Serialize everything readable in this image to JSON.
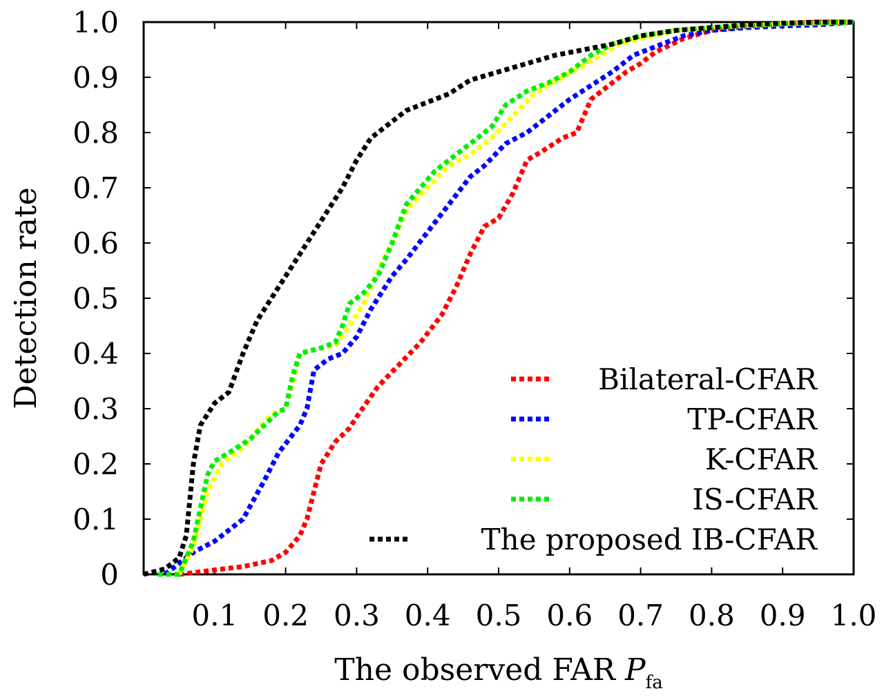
{
  "chart_data": {
    "type": "line",
    "title": "",
    "xlabel": "The observed FAR ",
    "xlabel_symbol": "P",
    "xlabel_subscript": "fa",
    "ylabel": "Detection rate",
    "xlim": [
      0,
      1.0
    ],
    "ylim": [
      0,
      1.0
    ],
    "xticks": [
      "0.1",
      "0.2",
      "0.3",
      "0.4",
      "0.5",
      "0.6",
      "0.7",
      "0.8",
      "0.9",
      "1.0"
    ],
    "xtick_values": [
      0.1,
      0.2,
      0.3,
      0.4,
      0.5,
      0.6,
      0.7,
      0.8,
      0.9,
      1.0
    ],
    "yticks": [
      "0",
      "0.1",
      "0.2",
      "0.3",
      "0.4",
      "0.5",
      "0.6",
      "0.7",
      "0.8",
      "0.9",
      "1.0"
    ],
    "ytick_values": [
      0,
      0.1,
      0.2,
      0.3,
      0.4,
      0.5,
      0.6,
      0.7,
      0.8,
      0.9,
      1.0
    ],
    "grid": false,
    "legend_position": "bottom-right",
    "line_style": "dotted",
    "series": [
      {
        "name": "Bilateral-CFAR",
        "color": "#ff0000",
        "points": [
          [
            0.05,
            0
          ],
          [
            0.07,
            0.003
          ],
          [
            0.1,
            0.008
          ],
          [
            0.14,
            0.014
          ],
          [
            0.18,
            0.025
          ],
          [
            0.2,
            0.04
          ],
          [
            0.22,
            0.07
          ],
          [
            0.23,
            0.1
          ],
          [
            0.24,
            0.15
          ],
          [
            0.25,
            0.2
          ],
          [
            0.27,
            0.24
          ],
          [
            0.29,
            0.265
          ],
          [
            0.3,
            0.285
          ],
          [
            0.33,
            0.34
          ],
          [
            0.36,
            0.38
          ],
          [
            0.39,
            0.42
          ],
          [
            0.42,
            0.47
          ],
          [
            0.44,
            0.52
          ],
          [
            0.46,
            0.58
          ],
          [
            0.48,
            0.63
          ],
          [
            0.5,
            0.645
          ],
          [
            0.52,
            0.69
          ],
          [
            0.54,
            0.75
          ],
          [
            0.56,
            0.765
          ],
          [
            0.59,
            0.79
          ],
          [
            0.61,
            0.8
          ],
          [
            0.63,
            0.86
          ],
          [
            0.66,
            0.89
          ],
          [
            0.68,
            0.91
          ],
          [
            0.7,
            0.925
          ],
          [
            0.72,
            0.945
          ],
          [
            0.76,
            0.97
          ],
          [
            0.8,
            0.985
          ],
          [
            0.85,
            0.992
          ],
          [
            0.9,
            0.997
          ],
          [
            0.95,
            1.0
          ],
          [
            1.0,
            1.0
          ]
        ]
      },
      {
        "name": "TP-CFAR",
        "color": "#0000ff",
        "points": [
          [
            0.03,
            0.0
          ],
          [
            0.05,
            0.02
          ],
          [
            0.07,
            0.04
          ],
          [
            0.1,
            0.06
          ],
          [
            0.14,
            0.1
          ],
          [
            0.17,
            0.17
          ],
          [
            0.19,
            0.22
          ],
          [
            0.22,
            0.27
          ],
          [
            0.23,
            0.3
          ],
          [
            0.24,
            0.37
          ],
          [
            0.26,
            0.39
          ],
          [
            0.28,
            0.4
          ],
          [
            0.3,
            0.43
          ],
          [
            0.32,
            0.48
          ],
          [
            0.35,
            0.54
          ],
          [
            0.37,
            0.57
          ],
          [
            0.4,
            0.62
          ],
          [
            0.43,
            0.67
          ],
          [
            0.46,
            0.72
          ],
          [
            0.48,
            0.74
          ],
          [
            0.51,
            0.78
          ],
          [
            0.54,
            0.8
          ],
          [
            0.57,
            0.83
          ],
          [
            0.6,
            0.86
          ],
          [
            0.63,
            0.885
          ],
          [
            0.66,
            0.91
          ],
          [
            0.69,
            0.94
          ],
          [
            0.73,
            0.96
          ],
          [
            0.76,
            0.975
          ],
          [
            0.8,
            0.985
          ],
          [
            0.85,
            0.99
          ],
          [
            0.9,
            0.993
          ],
          [
            0.95,
            0.995
          ],
          [
            1.0,
            1.0
          ]
        ]
      },
      {
        "name": "K-CFAR",
        "color": "#ffff00",
        "points": [
          [
            0.05,
            0.0
          ],
          [
            0.07,
            0.05
          ],
          [
            0.09,
            0.15
          ],
          [
            0.11,
            0.2
          ],
          [
            0.14,
            0.23
          ],
          [
            0.16,
            0.26
          ],
          [
            0.18,
            0.29
          ],
          [
            0.2,
            0.3
          ],
          [
            0.21,
            0.35
          ],
          [
            0.22,
            0.4
          ],
          [
            0.25,
            0.41
          ],
          [
            0.27,
            0.415
          ],
          [
            0.29,
            0.45
          ],
          [
            0.31,
            0.49
          ],
          [
            0.33,
            0.55
          ],
          [
            0.35,
            0.6
          ],
          [
            0.37,
            0.66
          ],
          [
            0.4,
            0.7
          ],
          [
            0.43,
            0.74
          ],
          [
            0.46,
            0.76
          ],
          [
            0.49,
            0.79
          ],
          [
            0.52,
            0.83
          ],
          [
            0.55,
            0.87
          ],
          [
            0.59,
            0.9
          ],
          [
            0.63,
            0.93
          ],
          [
            0.67,
            0.96
          ],
          [
            0.7,
            0.97
          ],
          [
            0.75,
            0.985
          ],
          [
            0.8,
            0.99
          ],
          [
            0.9,
            0.997
          ],
          [
            1.0,
            1.0
          ]
        ]
      },
      {
        "name": "IS-CFAR",
        "color": "#00ee00",
        "points": [
          [
            0.02,
            0.0
          ],
          [
            0.05,
            0.0
          ],
          [
            0.07,
            0.06
          ],
          [
            0.08,
            0.12
          ],
          [
            0.09,
            0.18
          ],
          [
            0.1,
            0.205
          ],
          [
            0.12,
            0.22
          ],
          [
            0.15,
            0.245
          ],
          [
            0.17,
            0.27
          ],
          [
            0.19,
            0.295
          ],
          [
            0.2,
            0.3
          ],
          [
            0.21,
            0.36
          ],
          [
            0.22,
            0.4
          ],
          [
            0.25,
            0.41
          ],
          [
            0.27,
            0.42
          ],
          [
            0.28,
            0.45
          ],
          [
            0.29,
            0.49
          ],
          [
            0.31,
            0.51
          ],
          [
            0.33,
            0.54
          ],
          [
            0.35,
            0.6
          ],
          [
            0.37,
            0.67
          ],
          [
            0.39,
            0.7
          ],
          [
            0.41,
            0.73
          ],
          [
            0.44,
            0.76
          ],
          [
            0.47,
            0.79
          ],
          [
            0.49,
            0.81
          ],
          [
            0.51,
            0.85
          ],
          [
            0.54,
            0.875
          ],
          [
            0.57,
            0.89
          ],
          [
            0.6,
            0.91
          ],
          [
            0.63,
            0.94
          ],
          [
            0.66,
            0.96
          ],
          [
            0.7,
            0.975
          ],
          [
            0.75,
            0.985
          ],
          [
            0.8,
            0.99
          ],
          [
            0.9,
            0.997
          ],
          [
            1.0,
            1.0
          ]
        ]
      },
      {
        "name": "The proposed IB-CFAR",
        "color": "#000000",
        "points": [
          [
            0.0,
            0.0
          ],
          [
            0.03,
            0.01
          ],
          [
            0.05,
            0.03
          ],
          [
            0.06,
            0.07
          ],
          [
            0.07,
            0.2
          ],
          [
            0.08,
            0.27
          ],
          [
            0.09,
            0.29
          ],
          [
            0.1,
            0.31
          ],
          [
            0.12,
            0.33
          ],
          [
            0.14,
            0.4
          ],
          [
            0.16,
            0.46
          ],
          [
            0.19,
            0.52
          ],
          [
            0.22,
            0.58
          ],
          [
            0.25,
            0.64
          ],
          [
            0.28,
            0.7
          ],
          [
            0.3,
            0.75
          ],
          [
            0.32,
            0.79
          ],
          [
            0.34,
            0.81
          ],
          [
            0.37,
            0.84
          ],
          [
            0.4,
            0.855
          ],
          [
            0.43,
            0.87
          ],
          [
            0.46,
            0.895
          ],
          [
            0.5,
            0.91
          ],
          [
            0.54,
            0.925
          ],
          [
            0.58,
            0.94
          ],
          [
            0.62,
            0.95
          ],
          [
            0.66,
            0.96
          ],
          [
            0.7,
            0.975
          ],
          [
            0.75,
            0.985
          ],
          [
            0.8,
            0.99
          ],
          [
            0.85,
            0.995
          ],
          [
            0.9,
            0.998
          ],
          [
            0.95,
            1.0
          ],
          [
            1.0,
            1.0
          ]
        ]
      }
    ]
  }
}
